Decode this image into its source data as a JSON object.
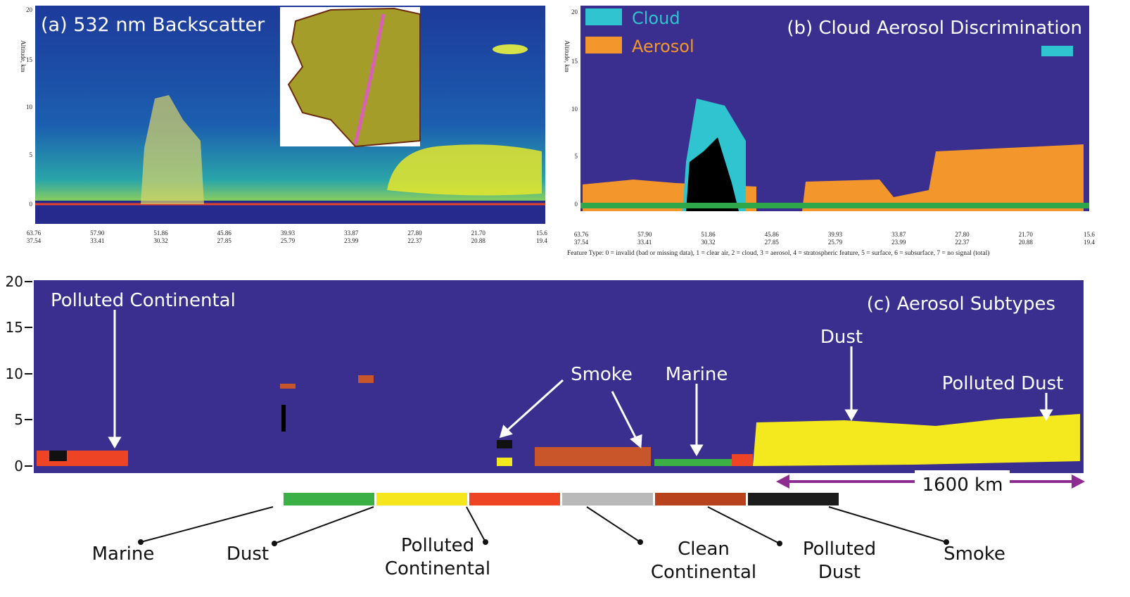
{
  "panel_a": {
    "title": "(a) 532 nm Backscatter",
    "y_axis_label": "Altitude, km",
    "yticks": [
      "20",
      "15",
      "10",
      "5",
      "0"
    ],
    "xticks": [
      [
        "63.76",
        "37.54"
      ],
      [
        "57.90",
        "33.41"
      ],
      [
        "51.86",
        "30.32"
      ],
      [
        "45.86",
        "27.85"
      ],
      [
        "39.93",
        "25.79"
      ],
      [
        "33.87",
        "23.99"
      ],
      [
        "27.80",
        "22.37"
      ],
      [
        "21.70",
        "20.88"
      ],
      [
        "15.6",
        "19.4"
      ]
    ]
  },
  "panel_b": {
    "title": "(b) Cloud Aerosol Discrimination",
    "y_axis_label": "Altitude, km",
    "legend": [
      {
        "name": "Cloud",
        "color": "#2fc4cf"
      },
      {
        "name": "Aerosol",
        "color": "#f3962b"
      }
    ],
    "yticks": [
      "20",
      "15",
      "10",
      "5",
      "0"
    ],
    "xticks": [
      [
        "63.76",
        "37.54"
      ],
      [
        "57.90",
        "33.41"
      ],
      [
        "51.86",
        "30.32"
      ],
      [
        "45.86",
        "27.85"
      ],
      [
        "39.93",
        "25.79"
      ],
      [
        "33.87",
        "23.99"
      ],
      [
        "27.80",
        "22.37"
      ],
      [
        "21.70",
        "20.88"
      ],
      [
        "15.6",
        "19.4"
      ]
    ],
    "footnote": "Feature Type: 0 = invalid (bad or missing data), 1 = clear air, 2 = cloud, 3 = aerosol, 4 = stratospheric feature, 5 = surface, 6 = subsurface, 7 = no signal (total)"
  },
  "panel_c": {
    "title": "(c) Aerosol Subtypes",
    "yticks": [
      "20",
      "15",
      "10",
      "5",
      "0"
    ],
    "annotations": [
      "Polluted Continental",
      "Smoke",
      "Marine",
      "Dust",
      "Polluted Dust"
    ],
    "scale": "1600 km"
  },
  "legend": [
    {
      "lines": [
        "Marine"
      ],
      "color": "#3bb044"
    },
    {
      "lines": [
        "Dust"
      ],
      "color": "#f6e61d"
    },
    {
      "lines": [
        "Polluted",
        "Continental"
      ],
      "color": "#ec4424"
    },
    {
      "lines": [
        "Clean",
        "Continental"
      ],
      "color": "#b9b9b9"
    },
    {
      "lines": [
        "Polluted",
        "Dust"
      ],
      "color": "#b8421c"
    },
    {
      "lines": [
        "Smoke"
      ],
      "color": "#1c1c1c"
    }
  ]
}
